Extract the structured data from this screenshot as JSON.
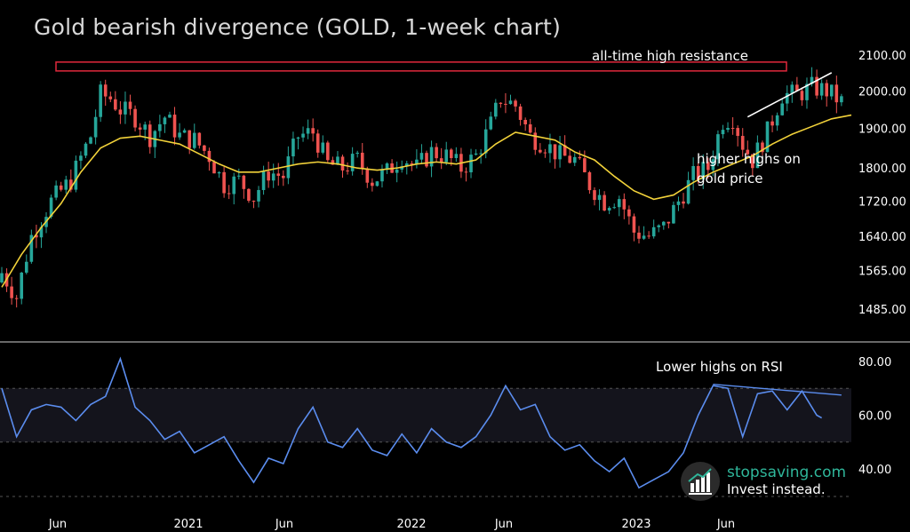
{
  "title": "Gold bearish divergence (GOLD, 1-week chart)",
  "annotations": {
    "resistance": "all-time high resistance",
    "higher_highs": "higher highs on gold price",
    "rsi_lower_highs": "Lower highs on RSI"
  },
  "watermark": {
    "site": "stopsaving.com",
    "tagline": "Invest instead."
  },
  "colors": {
    "background": "#000000",
    "up_candle": "#26a69a",
    "down_candle": "#ef5350",
    "moving_average": "#f2d23a",
    "rsi_line": "#5b8def",
    "resistance_box": "#e0283c",
    "trendline": "#ffffff",
    "rsi_band": "#14141c",
    "brand": "#2fb69a"
  },
  "chart_data": [
    {
      "type": "candlestick",
      "name": "GOLD weekly price",
      "y_ticks": [
        "2100.00",
        "2000.00",
        "1900.00",
        "1800.00",
        "1720.00",
        "1640.00",
        "1565.00",
        "1485.00"
      ],
      "y_scale": "log",
      "x_ticks": [
        "Jun",
        "2021",
        "Jun",
        "2022",
        "Jun",
        "2023",
        "Jun"
      ],
      "resistance_zone": [
        2055,
        2080
      ],
      "moving_average": [
        [
          0,
          1530
        ],
        [
          4,
          1600
        ],
        [
          8,
          1660
        ],
        [
          12,
          1715
        ],
        [
          16,
          1790
        ],
        [
          20,
          1850
        ],
        [
          24,
          1875
        ],
        [
          28,
          1880
        ],
        [
          32,
          1870
        ],
        [
          36,
          1860
        ],
        [
          40,
          1835
        ],
        [
          44,
          1810
        ],
        [
          48,
          1790
        ],
        [
          52,
          1790
        ],
        [
          56,
          1800
        ],
        [
          60,
          1810
        ],
        [
          64,
          1815
        ],
        [
          68,
          1810
        ],
        [
          72,
          1800
        ],
        [
          76,
          1795
        ],
        [
          80,
          1800
        ],
        [
          84,
          1810
        ],
        [
          88,
          1815
        ],
        [
          92,
          1810
        ],
        [
          96,
          1820
        ],
        [
          100,
          1860
        ],
        [
          104,
          1890
        ],
        [
          108,
          1880
        ],
        [
          112,
          1870
        ],
        [
          116,
          1840
        ],
        [
          120,
          1820
        ],
        [
          124,
          1780
        ],
        [
          128,
          1745
        ],
        [
          132,
          1725
        ],
        [
          136,
          1735
        ],
        [
          140,
          1765
        ],
        [
          144,
          1790
        ],
        [
          148,
          1810
        ],
        [
          152,
          1830
        ],
        [
          156,
          1860
        ],
        [
          160,
          1885
        ],
        [
          164,
          1905
        ],
        [
          168,
          1925
        ],
        [
          172,
          1935
        ]
      ]
    },
    {
      "type": "line",
      "name": "RSI",
      "y_ticks": [
        "80.00",
        "60.00",
        "40.00"
      ],
      "ylim": [
        30,
        85
      ],
      "band": [
        50,
        70
      ],
      "values": [
        [
          0,
          70
        ],
        [
          3,
          52
        ],
        [
          6,
          62
        ],
        [
          9,
          64
        ],
        [
          12,
          63
        ],
        [
          15,
          58
        ],
        [
          18,
          64
        ],
        [
          21,
          67
        ],
        [
          24,
          81
        ],
        [
          27,
          63
        ],
        [
          30,
          58
        ],
        [
          33,
          51
        ],
        [
          36,
          54
        ],
        [
          39,
          46
        ],
        [
          42,
          49
        ],
        [
          45,
          52
        ],
        [
          48,
          43
        ],
        [
          51,
          35
        ],
        [
          54,
          44
        ],
        [
          57,
          42
        ],
        [
          60,
          55
        ],
        [
          63,
          63
        ],
        [
          66,
          50
        ],
        [
          69,
          48
        ],
        [
          72,
          55
        ],
        [
          75,
          47
        ],
        [
          78,
          45
        ],
        [
          81,
          53
        ],
        [
          84,
          46
        ],
        [
          87,
          55
        ],
        [
          90,
          50
        ],
        [
          93,
          48
        ],
        [
          96,
          52
        ],
        [
          99,
          60
        ],
        [
          102,
          71
        ],
        [
          105,
          62
        ],
        [
          108,
          64
        ],
        [
          111,
          52
        ],
        [
          114,
          47
        ],
        [
          117,
          49
        ],
        [
          120,
          43
        ],
        [
          123,
          39
        ],
        [
          126,
          44
        ],
        [
          129,
          33
        ],
        [
          132,
          36
        ],
        [
          135,
          39
        ],
        [
          138,
          46
        ],
        [
          141,
          60
        ],
        [
          144,
          71
        ],
        [
          147,
          70
        ],
        [
          150,
          52
        ],
        [
          153,
          68
        ],
        [
          156,
          69
        ],
        [
          159,
          62
        ],
        [
          162,
          69
        ],
        [
          165,
          60
        ],
        [
          166,
          59
        ]
      ]
    }
  ]
}
